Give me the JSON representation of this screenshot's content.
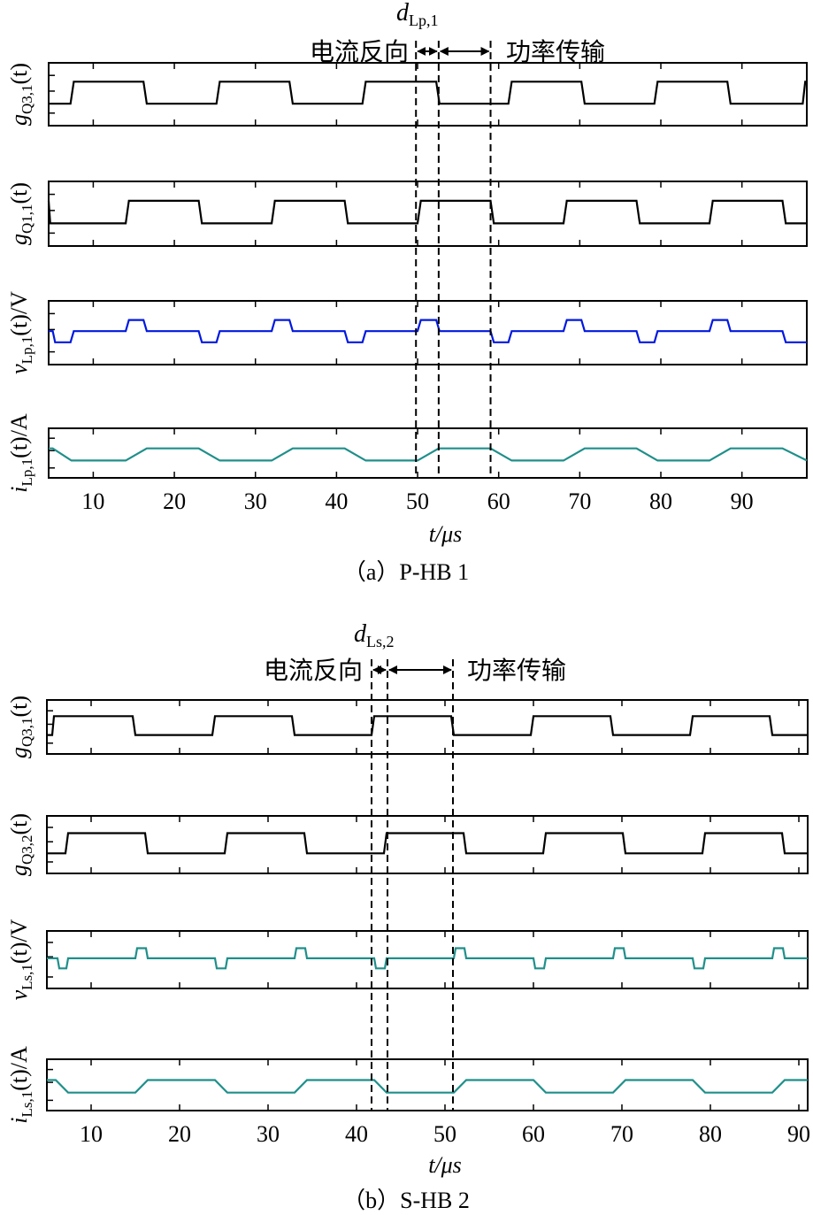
{
  "chart_data": [
    {
      "type": "line",
      "caption": "（a）P-HB 1",
      "xlabel": "t/μs",
      "xlim": [
        4.5,
        98
      ],
      "xticks": [
        10,
        20,
        30,
        40,
        50,
        60,
        70,
        80,
        90
      ],
      "annotations": {
        "d_label": "d",
        "d_sub": "Lp,1",
        "left_text": "电流反向",
        "right_text": "功率传输",
        "vlines": [
          49.8,
          52.6,
          59.0
        ]
      },
      "panels": [
        {
          "ylabel": "g",
          "ylabel_sub": "Q3,1",
          "ylabel_tail": "(t)",
          "color": "#000000",
          "y": [
            0,
            1
          ],
          "points": [
            [
              4.5,
              0
            ],
            [
              7.2,
              0
            ],
            [
              7.6,
              1
            ],
            [
              16.2,
              1
            ],
            [
              16.6,
              0
            ],
            [
              25.2,
              0
            ],
            [
              25.6,
              1
            ],
            [
              34.2,
              1
            ],
            [
              34.6,
              0
            ],
            [
              43.2,
              0
            ],
            [
              43.6,
              1
            ],
            [
              52.3,
              1
            ],
            [
              52.7,
              0
            ],
            [
              61.2,
              0
            ],
            [
              61.6,
              1
            ],
            [
              70.2,
              1
            ],
            [
              70.6,
              0
            ],
            [
              79.2,
              0
            ],
            [
              79.6,
              1
            ],
            [
              88.2,
              1
            ],
            [
              88.6,
              0
            ],
            [
              97.5,
              0
            ],
            [
              97.8,
              1
            ],
            [
              98,
              1
            ]
          ]
        },
        {
          "ylabel": "g",
          "ylabel_sub": "Q1,1",
          "ylabel_tail": "(t)",
          "color": "#000000",
          "y": [
            0,
            1
          ],
          "points": [
            [
              4.5,
              1
            ],
            [
              4.7,
              0
            ],
            [
              14.0,
              0
            ],
            [
              14.4,
              1
            ],
            [
              23.0,
              1
            ],
            [
              23.4,
              0
            ],
            [
              32.0,
              0
            ],
            [
              32.4,
              1
            ],
            [
              41.0,
              1
            ],
            [
              41.4,
              0
            ],
            [
              50.0,
              0
            ],
            [
              50.4,
              1
            ],
            [
              59.0,
              1
            ],
            [
              59.4,
              0
            ],
            [
              68.0,
              0
            ],
            [
              68.4,
              1
            ],
            [
              77.0,
              1
            ],
            [
              77.4,
              0
            ],
            [
              86.0,
              0
            ],
            [
              86.4,
              1
            ],
            [
              95.0,
              1
            ],
            [
              95.4,
              0
            ],
            [
              98,
              0
            ]
          ]
        },
        {
          "ylabel": "v",
          "ylabel_sub": "Lp,1",
          "ylabel_tail": "(t)/V",
          "color": "#0018e0",
          "y": [
            -1,
            1
          ],
          "points": [
            [
              4.5,
              0
            ],
            [
              5.0,
              0
            ],
            [
              5.3,
              -1
            ],
            [
              7.2,
              -1
            ],
            [
              7.6,
              0
            ],
            [
              14.0,
              0
            ],
            [
              14.4,
              1
            ],
            [
              16.2,
              1
            ],
            [
              16.6,
              0
            ],
            [
              23.0,
              0
            ],
            [
              23.4,
              -1
            ],
            [
              25.2,
              -1
            ],
            [
              25.6,
              0
            ],
            [
              32.0,
              0
            ],
            [
              32.4,
              1
            ],
            [
              34.2,
              1
            ],
            [
              34.6,
              0
            ],
            [
              41.0,
              0
            ],
            [
              41.4,
              -1
            ],
            [
              43.2,
              -1
            ],
            [
              43.6,
              0
            ],
            [
              50.0,
              0
            ],
            [
              50.4,
              1
            ],
            [
              52.3,
              1
            ],
            [
              52.7,
              0
            ],
            [
              59.0,
              0
            ],
            [
              59.4,
              -1
            ],
            [
              61.2,
              -1
            ],
            [
              61.6,
              0
            ],
            [
              68.0,
              0
            ],
            [
              68.4,
              1
            ],
            [
              70.2,
              1
            ],
            [
              70.6,
              0
            ],
            [
              77.0,
              0
            ],
            [
              77.4,
              -1
            ],
            [
              79.2,
              -1
            ],
            [
              79.6,
              0
            ],
            [
              86.0,
              0
            ],
            [
              86.4,
              1
            ],
            [
              88.2,
              1
            ],
            [
              88.6,
              0
            ],
            [
              95.0,
              0
            ],
            [
              95.4,
              -1
            ],
            [
              98,
              -1
            ]
          ]
        },
        {
          "ylabel": "i",
          "ylabel_sub": "Lp,1",
          "ylabel_tail": "(t)/A",
          "color": "#1f8f8a",
          "y": [
            -1,
            1
          ],
          "points": [
            [
              4.5,
              0.4
            ],
            [
              5.0,
              0.4
            ],
            [
              7.3,
              -1
            ],
            [
              14.0,
              -1
            ],
            [
              16.6,
              0.4
            ],
            [
              23.0,
              0.4
            ],
            [
              25.6,
              -1
            ],
            [
              32.0,
              -1
            ],
            [
              34.6,
              0.4
            ],
            [
              41.0,
              0.4
            ],
            [
              43.6,
              -1
            ],
            [
              50.0,
              -1
            ],
            [
              52.6,
              0.4
            ],
            [
              59.0,
              0.4
            ],
            [
              61.6,
              -1
            ],
            [
              68.0,
              -1
            ],
            [
              70.6,
              0.4
            ],
            [
              77.0,
              0.4
            ],
            [
              79.6,
              -1
            ],
            [
              86.0,
              -1
            ],
            [
              88.6,
              0.4
            ],
            [
              95.0,
              0.4
            ],
            [
              98,
              -1
            ]
          ]
        }
      ]
    },
    {
      "type": "line",
      "caption": "（b）S-HB 2",
      "xlabel": "t/μs",
      "xlim": [
        5,
        91
      ],
      "xticks": [
        10,
        20,
        30,
        40,
        50,
        60,
        70,
        80,
        90
      ],
      "annotations": {
        "d_label": "d",
        "d_sub": "Ls,2",
        "left_text": "电流反向",
        "right_text": "功率传输",
        "vlines": [
          41.7,
          43.5,
          50.9
        ]
      },
      "panels": [
        {
          "ylabel": "g",
          "ylabel_sub": "Q3,1",
          "ylabel_tail": "(t)",
          "color": "#000000",
          "y": [
            0,
            1
          ],
          "points": [
            [
              5,
              0
            ],
            [
              5.6,
              0
            ],
            [
              5.8,
              1
            ],
            [
              14.7,
              1
            ],
            [
              15.0,
              0
            ],
            [
              23.7,
              0
            ],
            [
              24.0,
              1
            ],
            [
              32.7,
              1
            ],
            [
              33.0,
              0
            ],
            [
              41.7,
              0
            ],
            [
              42.0,
              1
            ],
            [
              50.7,
              1
            ],
            [
              51.0,
              0
            ],
            [
              59.7,
              0
            ],
            [
              60.0,
              1
            ],
            [
              68.7,
              1
            ],
            [
              69.0,
              0
            ],
            [
              77.7,
              0
            ],
            [
              78.0,
              1
            ],
            [
              86.7,
              1
            ],
            [
              87.0,
              0
            ],
            [
              91,
              0
            ]
          ]
        },
        {
          "ylabel": "g",
          "ylabel_sub": "Q3,2",
          "ylabel_tail": "(t)",
          "color": "#000000",
          "y": [
            0,
            1
          ],
          "points": [
            [
              5,
              0
            ],
            [
              7.1,
              0
            ],
            [
              7.4,
              1
            ],
            [
              16.1,
              1
            ],
            [
              16.4,
              0
            ],
            [
              25.1,
              0
            ],
            [
              25.4,
              1
            ],
            [
              34.1,
              1
            ],
            [
              34.4,
              0
            ],
            [
              43.1,
              0
            ],
            [
              43.4,
              1
            ],
            [
              52.1,
              1
            ],
            [
              52.4,
              0
            ],
            [
              61.1,
              0
            ],
            [
              61.4,
              1
            ],
            [
              70.1,
              1
            ],
            [
              70.4,
              0
            ],
            [
              79.1,
              0
            ],
            [
              79.4,
              1
            ],
            [
              88.1,
              1
            ],
            [
              88.4,
              0
            ],
            [
              91,
              0
            ]
          ]
        },
        {
          "ylabel": "v",
          "ylabel_sub": "Ls,1",
          "ylabel_tail": "(t)/V",
          "color": "#1f8f8a",
          "y": [
            -1,
            1
          ],
          "points": [
            [
              5,
              0
            ],
            [
              6.2,
              0
            ],
            [
              6.4,
              -1
            ],
            [
              7.2,
              -1
            ],
            [
              7.4,
              0
            ],
            [
              15.0,
              0
            ],
            [
              15.2,
              1
            ],
            [
              16.2,
              1
            ],
            [
              16.4,
              0
            ],
            [
              24.0,
              0
            ],
            [
              24.2,
              -1
            ],
            [
              25.2,
              -1
            ],
            [
              25.4,
              0
            ],
            [
              33.0,
              0
            ],
            [
              33.2,
              1
            ],
            [
              34.2,
              1
            ],
            [
              34.4,
              0
            ],
            [
              42.0,
              0
            ],
            [
              42.2,
              -1
            ],
            [
              43.2,
              -1
            ],
            [
              43.4,
              0
            ],
            [
              51.0,
              0
            ],
            [
              51.2,
              1
            ],
            [
              52.2,
              1
            ],
            [
              52.4,
              0
            ],
            [
              60.0,
              0
            ],
            [
              60.2,
              -1
            ],
            [
              61.2,
              -1
            ],
            [
              61.4,
              0
            ],
            [
              69.0,
              0
            ],
            [
              69.2,
              1
            ],
            [
              70.2,
              1
            ],
            [
              70.4,
              0
            ],
            [
              78.0,
              0
            ],
            [
              78.2,
              -1
            ],
            [
              79.2,
              -1
            ],
            [
              79.4,
              0
            ],
            [
              87.0,
              0
            ],
            [
              87.2,
              1
            ],
            [
              88.2,
              1
            ],
            [
              88.4,
              0
            ],
            [
              91,
              0
            ]
          ]
        },
        {
          "ylabel": "i",
          "ylabel_sub": "Ls,1",
          "ylabel_tail": "(t)/A",
          "color": "#1f8f8a",
          "y": [
            -1,
            1
          ],
          "points": [
            [
              5,
              0.4
            ],
            [
              6.0,
              0.4
            ],
            [
              7.4,
              -1
            ],
            [
              15.0,
              -1
            ],
            [
              16.4,
              0.4
            ],
            [
              24.0,
              0.4
            ],
            [
              25.4,
              -1
            ],
            [
              33.0,
              -1
            ],
            [
              34.4,
              0.4
            ],
            [
              42.0,
              0.4
            ],
            [
              43.4,
              -1
            ],
            [
              51.0,
              -1
            ],
            [
              52.4,
              0.4
            ],
            [
              60.0,
              0.4
            ],
            [
              61.4,
              -1
            ],
            [
              69.0,
              -1
            ],
            [
              70.4,
              0.4
            ],
            [
              78.0,
              0.4
            ],
            [
              79.4,
              -1
            ],
            [
              87.0,
              -1
            ],
            [
              88.4,
              0.4
            ],
            [
              91,
              0.4
            ]
          ]
        }
      ]
    }
  ]
}
